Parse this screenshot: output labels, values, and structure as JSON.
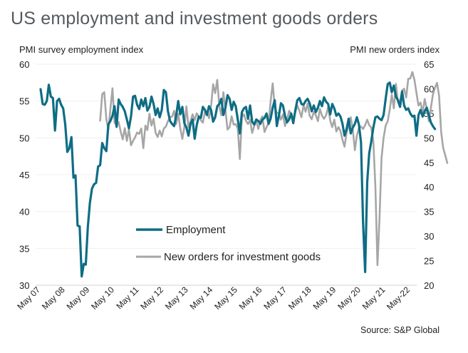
{
  "chart_data": {
    "type": "line",
    "title": "US employment and investment goods orders",
    "ylabel_left": "PMI survey employment index",
    "ylabel_right": "PMI new orders index",
    "source": "Source: S&P Global",
    "ylim_left": [
      30,
      60
    ],
    "ylim_right": [
      20,
      65
    ],
    "yticks_left": [
      "60",
      "55",
      "50",
      "45",
      "40",
      "35",
      "30"
    ],
    "yticks_right": [
      "65",
      "60",
      "55",
      "50",
      "45",
      "40",
      "35",
      "30",
      "25",
      "20"
    ],
    "x_start": "2007-05",
    "xticks": [
      "May 07",
      "May 08",
      "May 09",
      "May 10",
      "May 11",
      "May 12",
      "May 13",
      "May 14",
      "May 15",
      "May 16",
      "May 17",
      "May 18",
      "May 19",
      "May 20",
      "May 21",
      "May-22"
    ],
    "grid": true,
    "legend_position": "center-bottom",
    "series": [
      {
        "name": "Employment",
        "axis": "left",
        "color": "#0e6d84",
        "start": "2007-05",
        "values": [
          56.6,
          54.6,
          54.5,
          55.0,
          57.2,
          55.6,
          55.4,
          51.0,
          55.0,
          55.3,
          54.5,
          54.0,
          51.8,
          48.1,
          48.6,
          50.1,
          44.6,
          44.9,
          38.1,
          38.0,
          31.2,
          32.9,
          32.8,
          37.9,
          41.2,
          43.1,
          43.7,
          43.9,
          46.1,
          46.3,
          49.3,
          48.6,
          48.2,
          51.8,
          52.3,
          53.0,
          54.3,
          51.5,
          55.2,
          54.6,
          54.2,
          53.6,
          52.5,
          51.3,
          52.9,
          55.6,
          55.7,
          54.5,
          53.9,
          55.2,
          54.3,
          55.4,
          53.7,
          54.2,
          55.6,
          54.6,
          53.1,
          54.0,
          52.8,
          53.8,
          56.5,
          56.2,
          53.6,
          52.3,
          51.9,
          51.6,
          53.0,
          55.0,
          53.2,
          54.2,
          52.0,
          51.4,
          50.3,
          51.9,
          52.5,
          49.9,
          51.7,
          52.9,
          52.7,
          54.2,
          53.8,
          53.1,
          54.3,
          53.8,
          52.2,
          52.8,
          54.3,
          54.6,
          55.3,
          53.1,
          54.1,
          55.8,
          55.3,
          53.8,
          54.9,
          54.3,
          52.5,
          50.6,
          53.5,
          54.0,
          54.2,
          52.6,
          54.4,
          52.2,
          51.8,
          52.5,
          52.3,
          51.9,
          52.5,
          52.7,
          53.3,
          51.9,
          52.6,
          54.1,
          55.1,
          51.6,
          53.0,
          54.7,
          54.4,
          53.0,
          52.1,
          52.5,
          53.3,
          52.0,
          53.7,
          55.1,
          55.4,
          54.6,
          54.5,
          55.0,
          55.3,
          54.7,
          53.6,
          54.4,
          53.5,
          54.1,
          55.0,
          54.3,
          55.5,
          54.9,
          54.6,
          53.2,
          54.6,
          54.0,
          53.0,
          53.3,
          52.9,
          51.9,
          50.3,
          51.2,
          52.6,
          50.6,
          51.4,
          51.9,
          52.8,
          51.8,
          49.4,
          38.5,
          31.8,
          44.0,
          47.9,
          49.5,
          51.4,
          52.8,
          52.9,
          52.6,
          52.4,
          53.1,
          55.3,
          57.3,
          57.5,
          56.2,
          57.1,
          55.6,
          55.1,
          54.2,
          56.3,
          54.4,
          53.8,
          54.0,
          53.3,
          52.9,
          53.0,
          50.3,
          53.1,
          53.8,
          52.9,
          53.6,
          54.1,
          53.1,
          52.1,
          51.6,
          51.2
        ]
      },
      {
        "name": "New orders for investment goods",
        "axis": "right",
        "color": "#a6a6a6",
        "start": "2009-10",
        "values": [
          53.5,
          58.9,
          59.3,
          53.8,
          51.7,
          55.9,
          60.1,
          53.1,
          52.5,
          53.2,
          51.3,
          49.7,
          52.0,
          49.4,
          51.8,
          48.5,
          49.4,
          50.1,
          51.1,
          50.8,
          51.9,
          47.9,
          52.5,
          51.6,
          54.9,
          52.5,
          53.9,
          51.0,
          50.2,
          51.5,
          50.3,
          51.9,
          52.3,
          53.4,
          54.2,
          54.3,
          55.5,
          52.8,
          54.9,
          51.9,
          49.8,
          52.2,
          56.4,
          52.2,
          53.4,
          54.8,
          53.6,
          55.0,
          54.4,
          53.6,
          53.1,
          55.3,
          55.4,
          54.0,
          56.4,
          60.9,
          59.1,
          61.8,
          56.4,
          54.6,
          59.3,
          55.6,
          51.7,
          52.2,
          54.4,
          52.7,
          52.8,
          51.9,
          45.7,
          54.2,
          54.8,
          53.5,
          52.8,
          53.7,
          51.0,
          52.4,
          53.6,
          51.8,
          53.6,
          54.4,
          51.2,
          52.2,
          53.0,
          57.4,
          61.1,
          56.3,
          55.1,
          55.0,
          53.7,
          54.8,
          52.4,
          53.7,
          55.5,
          54.9,
          53.6,
          55.2,
          56.6,
          55.5,
          54.2,
          56.7,
          55.3,
          57.0,
          54.5,
          53.8,
          55.3,
          54.6,
          53.4,
          55.9,
          54.5,
          53.9,
          54.6,
          56.3,
          53.5,
          52.2,
          53.7,
          51.3,
          52.2,
          51.4,
          49.6,
          48.2,
          51.1,
          52.5,
          54.2,
          51.6,
          47.5,
          50.5,
          52.0,
          52.3,
          51.8,
          52.6,
          53.7,
          52.6,
          52.1,
          49.3,
          40.0,
          24.1,
          33.7,
          45.9,
          50.0,
          52.5,
          53.4,
          55.8,
          58.8,
          56.0,
          61.0,
          57.2,
          57.5,
          59.6,
          60.0,
          58.2,
          62.0,
          62.1,
          63.4,
          61.8,
          59.2,
          56.6,
          57.2,
          55.0,
          57.9,
          56.0,
          53.4,
          56.0,
          58.8,
          60.2,
          61.2,
          58.6,
          51.2,
          48.0,
          46.5,
          44.9
        ]
      }
    ]
  }
}
